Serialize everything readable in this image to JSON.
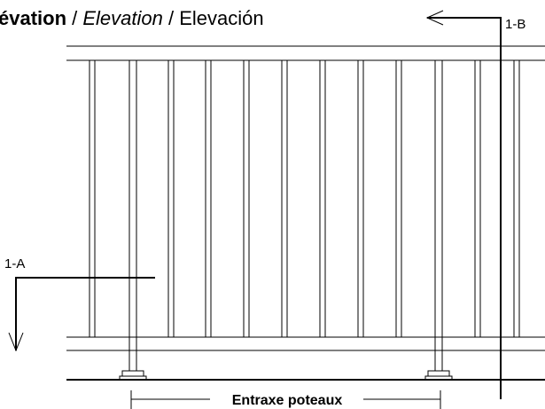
{
  "title": {
    "part1": "évation",
    "sep1": " / ",
    "part2": "Elevation",
    "sep2": " / ",
    "part3": "Elevación"
  },
  "sections": {
    "b": "1-B",
    "a": "1-A"
  },
  "dimension": "Entraxe poteaux"
}
